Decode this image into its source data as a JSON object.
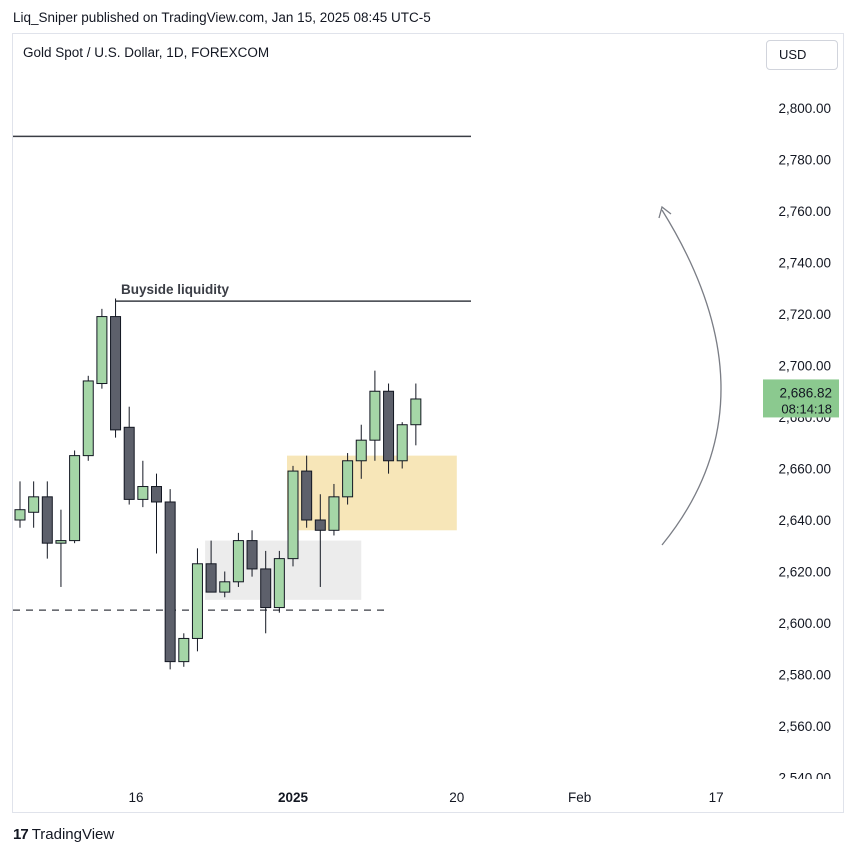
{
  "header": {
    "publish_line": "Liq_Sniper published on TradingView.com, Jan 15, 2025 08:45 UTC-5",
    "symbol": "Gold Spot / U.S. Dollar, 1D, FOREXCOM",
    "currency": "USD"
  },
  "footer": {
    "logo_mark": "17",
    "brand": "TradingView"
  },
  "chart_data": {
    "type": "candlestick",
    "price_axis": {
      "ticks": [
        "2,800.00",
        "2,780.00",
        "2,760.00",
        "2,740.00",
        "2,720.00",
        "2,700.00",
        "2,680.00",
        "2,660.00",
        "2,640.00",
        "2,620.00",
        "2,600.00",
        "2,580.00",
        "2,560.00",
        "2,540.00"
      ],
      "tick_values": [
        2800,
        2780,
        2760,
        2740,
        2720,
        2700,
        2680,
        2660,
        2640,
        2620,
        2600,
        2580,
        2560,
        2540
      ]
    },
    "time_axis": {
      "labels": [
        {
          "text": "16",
          "bold": false,
          "bar": 8.5
        },
        {
          "text": "2025",
          "bold": true,
          "bar": 20
        },
        {
          "text": "20",
          "bold": false,
          "bar": 32
        },
        {
          "text": "Feb",
          "bold": false,
          "bar": 41
        },
        {
          "text": "17",
          "bold": false,
          "bar": 51
        }
      ]
    },
    "current_price": {
      "value": "2,686.82",
      "countdown": "08:14:18",
      "price": 2686.82
    },
    "colors": {
      "up": "#a5d6a7",
      "down": "#5d606b",
      "wick": "#131722",
      "current_label": "#8bc98f"
    },
    "candles": [
      {
        "o": 2640,
        "h": 2655,
        "l": 2637,
        "c": 2644
      },
      {
        "o": 2643,
        "h": 2655,
        "l": 2637,
        "c": 2649
      },
      {
        "o": 2649,
        "h": 2655,
        "l": 2625,
        "c": 2631
      },
      {
        "o": 2631,
        "h": 2644,
        "l": 2614,
        "c": 2632
      },
      {
        "o": 2632,
        "h": 2667,
        "l": 2631,
        "c": 2665
      },
      {
        "o": 2665,
        "h": 2696,
        "l": 2663,
        "c": 2694
      },
      {
        "o": 2693,
        "h": 2722,
        "l": 2691,
        "c": 2719
      },
      {
        "o": 2719,
        "h": 2726,
        "l": 2672,
        "c": 2675
      },
      {
        "o": 2676,
        "h": 2684,
        "l": 2646,
        "c": 2648
      },
      {
        "o": 2648,
        "h": 2663,
        "l": 2645,
        "c": 2653
      },
      {
        "o": 2653,
        "h": 2658,
        "l": 2627,
        "c": 2647
      },
      {
        "o": 2647,
        "h": 2652,
        "l": 2582,
        "c": 2585
      },
      {
        "o": 2585,
        "h": 2596,
        "l": 2583,
        "c": 2594
      },
      {
        "o": 2594,
        "h": 2629,
        "l": 2589,
        "c": 2623
      },
      {
        "o": 2623,
        "h": 2632,
        "l": 2612,
        "c": 2612
      },
      {
        "o": 2612,
        "h": 2620,
        "l": 2610,
        "c": 2616
      },
      {
        "o": 2616,
        "h": 2635,
        "l": 2614,
        "c": 2632
      },
      {
        "o": 2632,
        "h": 2636,
        "l": 2618,
        "c": 2621
      },
      {
        "o": 2621,
        "h": 2628,
        "l": 2596,
        "c": 2606
      },
      {
        "o": 2606,
        "h": 2628,
        "l": 2604,
        "c": 2625
      },
      {
        "o": 2625,
        "h": 2661,
        "l": 2622,
        "c": 2659
      },
      {
        "o": 2659,
        "h": 2665,
        "l": 2637,
        "c": 2640
      },
      {
        "o": 2640,
        "h": 2650,
        "l": 2614,
        "c": 2636
      },
      {
        "o": 2636,
        "h": 2654,
        "l": 2634,
        "c": 2649
      },
      {
        "o": 2649,
        "h": 2666,
        "l": 2646,
        "c": 2663
      },
      {
        "o": 2663,
        "h": 2677,
        "l": 2656,
        "c": 2671
      },
      {
        "o": 2671,
        "h": 2698,
        "l": 2663,
        "c": 2690
      },
      {
        "o": 2690,
        "h": 2693,
        "l": 2658,
        "c": 2663
      },
      {
        "o": 2663,
        "h": 2678,
        "l": 2660,
        "c": 2677
      },
      {
        "o": 2677,
        "h": 2693,
        "l": 2669,
        "c": 2687
      }
    ],
    "annotations": {
      "buyside_label": "Buyside liquidity",
      "buyside_level": 2725,
      "top_level": 2789,
      "dashed_level": 2605,
      "premium_zone": {
        "from_bar": 20,
        "to_bar": 32,
        "top": 2665,
        "bottom": 2636,
        "color": "#f7e6b8"
      },
      "grey_zone": {
        "from_bar": 14,
        "to_bar": 25,
        "top": 2632,
        "bottom": 2609,
        "color": "#ececec"
      }
    }
  }
}
